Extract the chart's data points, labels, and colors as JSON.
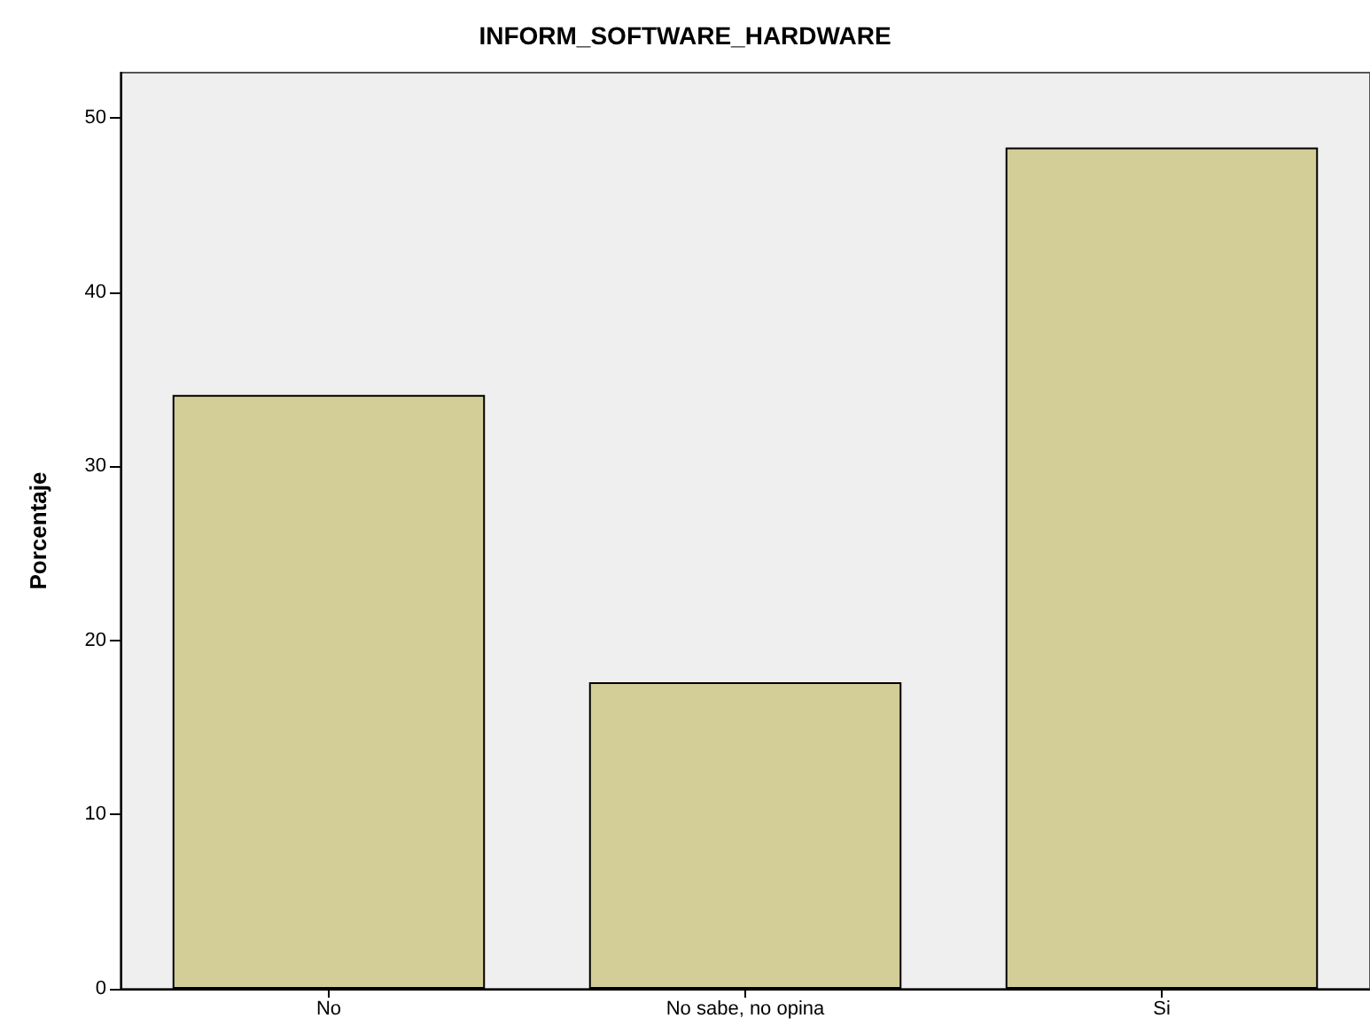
{
  "chart_data": {
    "type": "bar",
    "title": "INFORM_SOFTWARE_HARDWARE",
    "ylabel": "Porcentaje",
    "categories": [
      "No",
      "No sabe, no opina",
      "Si"
    ],
    "values": [
      34.1,
      17.6,
      48.3
    ],
    "color": "#d3cd97",
    "ylim": [
      0,
      52.6
    ],
    "yticks": [
      0,
      10,
      20,
      30,
      40,
      50
    ],
    "grid": false
  }
}
